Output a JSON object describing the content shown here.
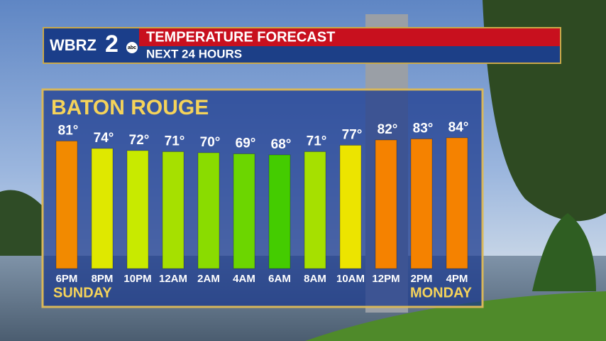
{
  "header": {
    "logo": "WBRZ",
    "logo_number": "2",
    "network": "abc",
    "title": "TEMPERATURE FORECAST",
    "subtitle": "NEXT 24 HOURS"
  },
  "chart_data": {
    "type": "bar",
    "title": "BATON ROUGE",
    "categories": [
      "6PM",
      "8PM",
      "10PM",
      "12AM",
      "2AM",
      "4AM",
      "6AM",
      "8AM",
      "10AM",
      "12PM",
      "2PM",
      "4PM"
    ],
    "values": [
      81,
      74,
      72,
      71,
      70,
      69,
      68,
      71,
      77,
      82,
      83,
      84
    ],
    "value_labels": [
      "81°",
      "74°",
      "72°",
      "71°",
      "70°",
      "69°",
      "68°",
      "71°",
      "77°",
      "82°",
      "83°",
      "84°"
    ],
    "colors": [
      "#f28a00",
      "#dfe800",
      "#c8ea00",
      "#a6e000",
      "#8adc00",
      "#6cd600",
      "#44cc00",
      "#a6e000",
      "#ece400",
      "#f58200",
      "#f58200",
      "#f58200"
    ],
    "annotations": [
      "SUNDAY",
      "MONDAY"
    ]
  }
}
